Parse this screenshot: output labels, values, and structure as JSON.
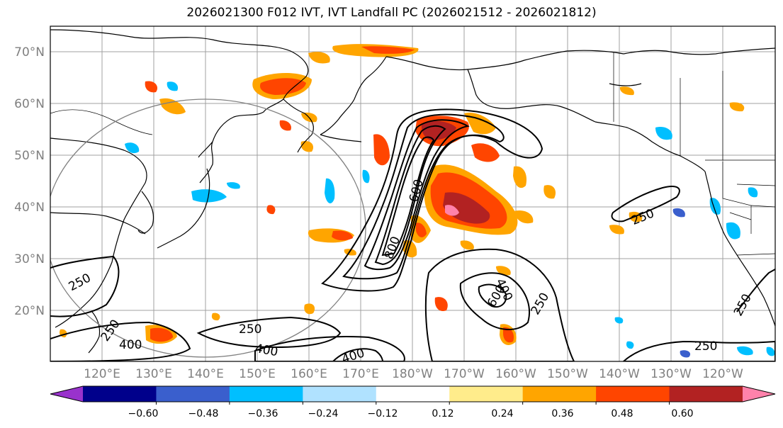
{
  "title": "2026021300 F012 IVT, IVT Landfall PC (2026021512 - 2026021812)",
  "lat_labels": [
    "70°N",
    "60°N",
    "50°N",
    "40°N",
    "30°N",
    "20°N"
  ],
  "lon_labels": [
    "120°E",
    "130°E",
    "140°E",
    "150°E",
    "160°E",
    "170°E",
    "180°W",
    "170°W",
    "160°W",
    "150°W",
    "140°W",
    "130°W",
    "120°W"
  ],
  "contour_labels": [
    "250",
    "250",
    "400",
    "250",
    "600",
    "800",
    "600",
    "400",
    "250",
    "250",
    "250",
    "400",
    "400",
    "250"
  ],
  "colorbar": {
    "colors": [
      "#9932cc",
      "#00008b",
      "#3a5fcd",
      "#00bfff",
      "#b0e2ff",
      "#ffffff",
      "#ffec8b",
      "#ffa500",
      "#ff4500",
      "#b22222",
      "#ff82ab"
    ],
    "tick_labels": [
      "−0.60",
      "−0.48",
      "−0.36",
      "−0.24",
      "−0.12",
      "0.12",
      "0.24",
      "0.36",
      "0.48",
      "0.60"
    ]
  }
}
